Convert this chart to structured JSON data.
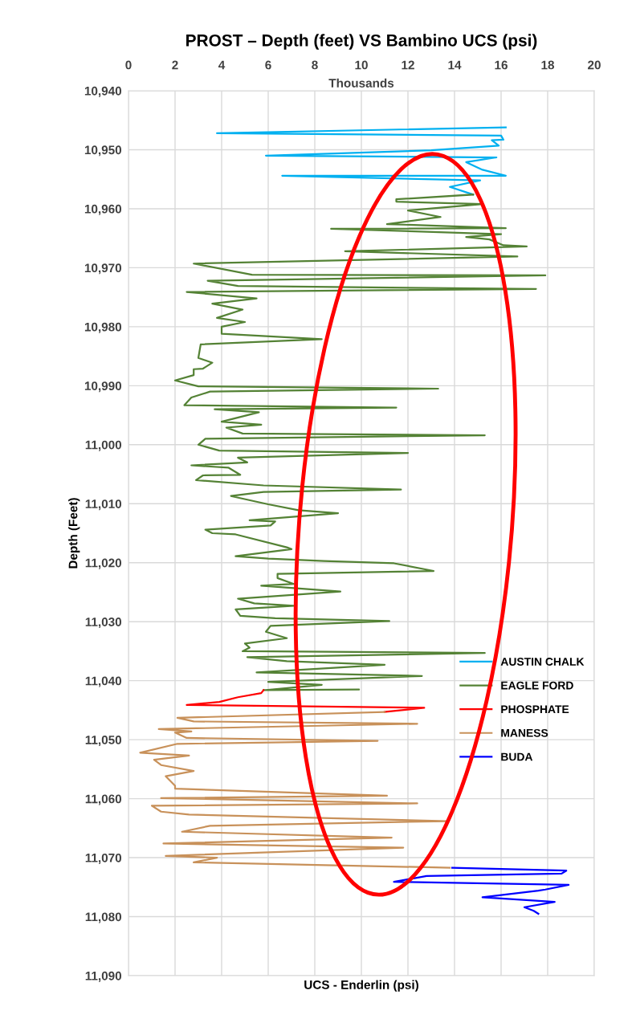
{
  "chart_data": {
    "type": "line",
    "title": "PROST – Depth (feet) VS Bambino UCS (psi)",
    "xlabel": "UCS - Enderlin (psi)",
    "ylabel": "Depth (Feet)",
    "annotations": [
      "Thousands"
    ],
    "xlim": [
      0,
      20
    ],
    "xticks": [
      0,
      2,
      4,
      6,
      8,
      10,
      12,
      14,
      16,
      18,
      20
    ],
    "ylim": [
      11090,
      10940
    ],
    "yticks": [
      {
        "value": 10940,
        "label": "10,940"
      },
      {
        "value": 10950,
        "label": "10,950"
      },
      {
        "value": 10960,
        "label": "10,960"
      },
      {
        "value": 10970,
        "label": "10,970"
      },
      {
        "value": 10980,
        "label": "10,980"
      },
      {
        "value": 10990,
        "label": "10,990"
      },
      {
        "value": 11000,
        "label": "11,000"
      },
      {
        "value": 11010,
        "label": "11,010"
      },
      {
        "value": 11020,
        "label": "11,020"
      },
      {
        "value": 11030,
        "label": "11,030"
      },
      {
        "value": 11040,
        "label": "11,040"
      },
      {
        "value": 11050,
        "label": "11,050"
      },
      {
        "value": 11060,
        "label": "11,060"
      },
      {
        "value": 11070,
        "label": "11,070"
      },
      {
        "value": 11080,
        "label": "11,080"
      },
      {
        "value": 11090,
        "label": "11,090"
      }
    ],
    "grid": true,
    "legend": "right",
    "marker": "none",
    "line_style": "solid",
    "series": [
      {
        "name": "AUSTIN CHALK",
        "color": "#00b0f0",
        "x": [
          16.2,
          3.8,
          16.0,
          16.1,
          15.6,
          15.9,
          13.0,
          5.9,
          15.8,
          14.5,
          15.2,
          16.2,
          6.6,
          15.1,
          13.8,
          14.8
        ],
        "values": [
          10946.2,
          10947.2,
          10947.6,
          10948.3,
          10948.4,
          10949.3,
          10950.1,
          10951.0,
          10951.3,
          10952.1,
          10953.4,
          10954.4,
          10954.4,
          10955.2,
          10956.3,
          10957.6
        ]
      },
      {
        "name": "EAGLE FORD",
        "color": "#548235",
        "x": [
          14.8,
          11.5,
          11.5,
          15.2,
          12.0,
          13.4,
          11.1,
          16.2,
          8.7,
          16.0,
          14.5,
          15.5,
          16.1,
          17.1,
          9.3,
          16.7,
          2.8,
          5.3,
          17.9,
          3.4,
          4.7,
          17.5,
          2.5,
          5.5,
          3.6,
          4.9,
          3.8,
          5.0,
          4.0,
          4.0,
          8.3,
          3.1,
          3.0,
          3.6,
          3.2,
          2.8,
          2.8,
          2.0,
          3.0,
          13.3,
          3.5,
          2.7,
          2.4,
          11.5,
          3.7,
          5.6,
          4.0,
          5.7,
          4.2,
          4.9,
          15.3,
          3.3,
          3.0,
          3.9,
          12.0,
          4.7,
          5.1,
          2.7,
          4.3,
          4.8,
          3.2,
          2.9,
          5.8,
          11.7,
          5.8,
          4.4,
          6.0,
          7.3,
          9.0,
          5.2,
          6.3,
          6.1,
          3.3,
          3.6,
          4.6,
          6.8,
          7.0,
          4.6,
          6.0,
          8.4,
          11.4,
          13.1,
          6.4,
          6.4,
          7.1,
          5.7,
          9.1,
          4.7,
          5.4,
          7.1,
          4.6,
          4.8,
          6.3,
          11.2,
          6.1,
          5.9,
          6.8,
          5.0,
          5.2,
          4.9,
          15.3,
          5.1,
          6.8,
          11.0,
          5.5,
          12.6,
          6.0,
          8.3,
          5.9,
          9.9,
          5.8
        ],
        "values": [
          10957.6,
          10958.4,
          10958.8,
          10959.2,
          10960.3,
          10961.4,
          10962.6,
          10963.3,
          10963.4,
          10964.3,
          10964.8,
          10965.2,
          10966.2,
          10966.4,
          10967.2,
          10968.1,
          10969.3,
          10971.2,
          10971.3,
          10972.2,
          10973.1,
          10973.6,
          10974.1,
          10975.2,
          10976.1,
          10977.1,
          10978.5,
          10979.2,
          10980.0,
          10981.2,
          10982.1,
          10983.0,
          10985.3,
          10986.1,
          10987.1,
          10987.2,
          10988.2,
          10989.1,
          10990.1,
          10990.5,
          10991.0,
          10992.0,
          10993.3,
          10993.7,
          10994.0,
          10994.5,
          10996.1,
          10996.6,
          10997.1,
          10998.1,
          10998.4,
          10999.0,
          11000.0,
          11001.0,
          11001.4,
          11002.2,
          11003.0,
          11003.5,
          11003.9,
          11005.1,
          11005.2,
          11006.0,
          11006.9,
          11007.6,
          11008.0,
          11008.7,
          11010.1,
          11011.1,
          11011.6,
          11012.8,
          11013.0,
          11013.7,
          11014.4,
          11015.0,
          11015.2,
          11017.4,
          11017.7,
          11018.9,
          11019.3,
          11019.7,
          11020.1,
          11021.4,
          11021.9,
          11022.6,
          11023.6,
          11023.9,
          11024.9,
          11026.1,
          11026.9,
          11027.3,
          11027.9,
          11029.0,
          11029.4,
          11029.9,
          11030.7,
          11031.7,
          11032.8,
          11033.7,
          11034.4,
          11035.0,
          11035.3,
          11036.0,
          11036.7,
          11037.3,
          11038.6,
          11039.2,
          11040.2,
          11040.7,
          11041.6,
          11041.5,
          11041.6
        ]
      },
      {
        "name": "PHOSPHATE",
        "color": "#ff0000",
        "x": [
          5.8,
          5.7,
          4.7,
          3.9,
          2.5,
          12.7,
          11.0
        ],
        "values": [
          11041.6,
          11042.1,
          11042.8,
          11043.6,
          11044.1,
          11044.6,
          11045.3
        ]
      },
      {
        "name": "MANESS",
        "color": "#c8915a",
        "x": [
          11.0,
          2.1,
          2.8,
          12.4,
          1.3,
          2.7,
          2.0,
          2.5,
          10.7,
          2.1,
          0.5,
          2.6,
          1.1,
          1.4,
          2.8,
          1.6,
          2.0,
          2.0,
          11.1,
          1.4,
          12.4,
          1.0,
          1.4,
          2.6,
          13.7,
          3.5,
          2.3,
          11.3,
          1.5,
          11.8,
          1.6,
          3.8,
          2.8,
          13.8
        ],
        "values": [
          11045.3,
          11046.3,
          11046.9,
          11047.3,
          11048.2,
          11048.6,
          11048.8,
          11049.7,
          11050.2,
          11050.7,
          11052.2,
          11052.7,
          11053.4,
          11054.3,
          11055.3,
          11056.2,
          11057.8,
          11058.3,
          11059.5,
          11059.9,
          11060.8,
          11061.2,
          11062.2,
          11062.7,
          11063.8,
          11064.6,
          11065.6,
          11066.6,
          11067.6,
          11068.3,
          11069.7,
          11070.0,
          11070.8,
          11071.7
        ]
      },
      {
        "name": "BUDA",
        "color": "#0000ff",
        "x": [
          13.9,
          18.8,
          18.6,
          12.8,
          11.4,
          18.9,
          17.9,
          17.6,
          15.2,
          18.3,
          17.0,
          17.4,
          17.6
        ],
        "values": [
          11071.7,
          11072.2,
          11072.7,
          11073.1,
          11074.1,
          11074.6,
          11075.4,
          11075.6,
          11076.7,
          11077.5,
          11078.4,
          11079.0,
          11079.5
        ]
      }
    ]
  }
}
